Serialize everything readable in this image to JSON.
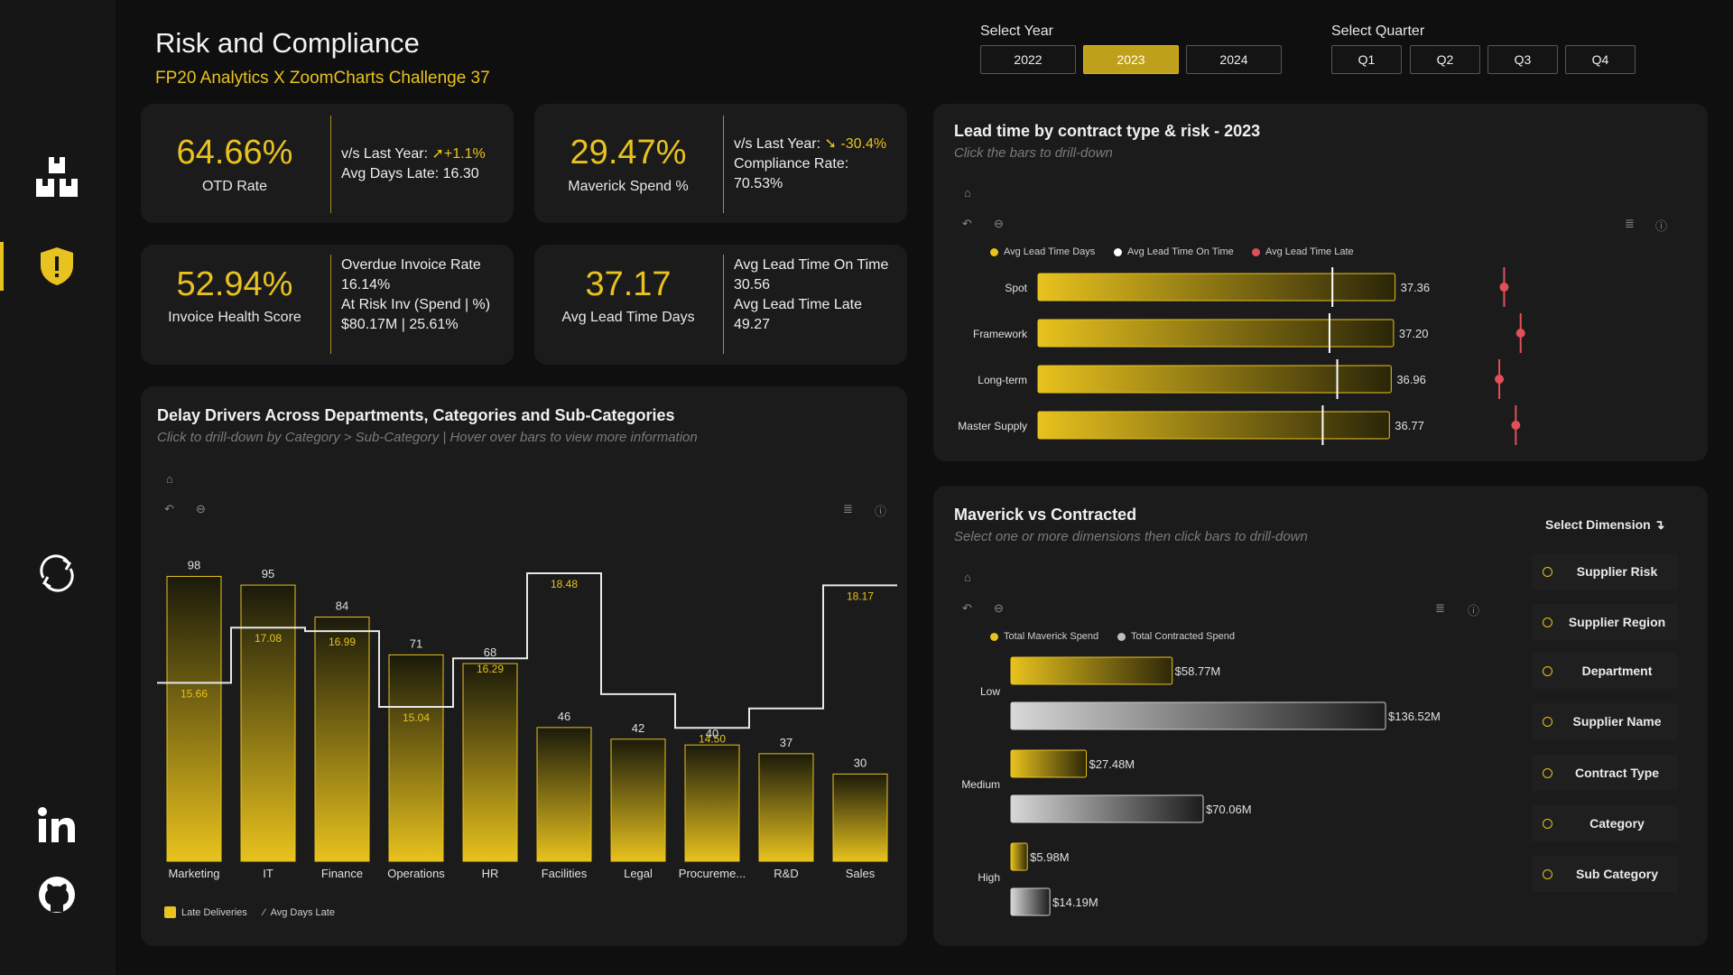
{
  "header": {
    "title": "Risk and Compliance",
    "subtitle": "FP20 Analytics X ZoomCharts Challenge 37"
  },
  "sidebar": {
    "icons": [
      "boxes-icon",
      "shield-alert-icon",
      "refresh-icon",
      "linkedin-icon",
      "github-icon"
    ],
    "active": "shield-alert-icon"
  },
  "year_selector": {
    "label": "Select Year",
    "options": [
      "2022",
      "2023",
      "2024"
    ],
    "selected": "2023"
  },
  "quarter_selector": {
    "label": "Select Quarter",
    "options": [
      "Q1",
      "Q2",
      "Q3",
      "Q4"
    ]
  },
  "kpis": {
    "otd": {
      "value": "64.66%",
      "label": "OTD Rate",
      "line1": "v/s Last Year:",
      "change": "+1.1%",
      "line2": "Avg Days Late: 16.30"
    },
    "maverick": {
      "value": "29.47%",
      "label": "Maverick Spend %",
      "line1": "v/s Last Year:",
      "change": "-30.4%",
      "line2": "Compliance Rate:",
      "line3": "70.53%"
    },
    "invoice": {
      "value": "52.94%",
      "label": "Invoice Health Score",
      "line1": "Overdue Invoice Rate",
      "line2": "16.14%",
      "line3": "At Risk Inv (Spend | %)",
      "line4": "$80.17M | 25.61%"
    },
    "leadtime": {
      "value": "37.17",
      "label": "Avg Lead Time Days",
      "line1": "Avg Lead Time On Time",
      "line2": "30.56",
      "line3": "Avg Lead Time Late",
      "line4": "49.27"
    }
  },
  "colors": {
    "accent": "#e8c21e",
    "late_marker": "#e0505a",
    "panel": "#1b1b1b",
    "background": "#0f0f0f"
  },
  "delay_panel": {
    "title": "Delay Drivers Across Departments, Categories and Sub-Categories",
    "hint": "Click to drill-down by Category > Sub-Category | Hover over bars to view more information",
    "legend_bars": "Late Deliveries",
    "legend_line": "Avg Days Late"
  },
  "lead_panel": {
    "title": "Lead time by contract type & risk - 2023",
    "hint": "Click the bars to drill-down",
    "legend": [
      "Avg Lead Time Days",
      "Avg Lead Time On Time",
      "Avg Lead Time Late"
    ]
  },
  "maverick_panel": {
    "title": "Maverick vs Contracted",
    "hint": "Select one or more dimensions then click bars to drill-down",
    "legend": [
      "Total Maverick Spend",
      "Total Contracted Spend"
    ],
    "dimension_title": "Select Dimension",
    "dimensions": [
      "Supplier Risk",
      "Supplier Region",
      "Department",
      "Supplier Name",
      "Contract Type",
      "Category",
      "Sub Category"
    ]
  },
  "chart_data": [
    {
      "type": "bar",
      "title": "Delay Drivers Across Departments, Categories and Sub-Categories",
      "categories": [
        "Marketing",
        "IT",
        "Finance",
        "Operations",
        "HR",
        "Facilities",
        "Legal",
        "Procureme...",
        "R&D",
        "Sales"
      ],
      "series": [
        {
          "name": "Late Deliveries",
          "type": "bar",
          "values": [
            98,
            95,
            84,
            71,
            68,
            46,
            42,
            40,
            37,
            30
          ]
        },
        {
          "name": "Avg Days Late",
          "type": "step-line",
          "values": [
            15.66,
            17.08,
            16.99,
            15.04,
            16.29,
            18.48,
            null,
            14.5,
            null,
            18.17
          ],
          "labels": [
            "15.66",
            "17.08",
            "16.99",
            "15.04",
            "16.29",
            "18.48",
            "",
            "14.50",
            "",
            "18.17"
          ]
        }
      ]
    },
    {
      "type": "bar",
      "orientation": "horizontal",
      "title": "Lead time by contract type & risk - 2023",
      "categories": [
        "Spot",
        "Framework",
        "Long-term",
        "Master Supply"
      ],
      "series": [
        {
          "name": "Avg Lead Time Days",
          "values": [
            37.36,
            37.2,
            36.96,
            36.77
          ],
          "labels": [
            "37.36",
            "37.20",
            "36.96",
            "36.77"
          ]
        },
        {
          "name": "Avg Lead Time On Time",
          "values": [
            30.9,
            30.6,
            31.4,
            29.9
          ]
        },
        {
          "name": "Avg Lead Time Late",
          "values": [
            48.6,
            50.3,
            48.1,
            49.8
          ]
        }
      ]
    },
    {
      "type": "bar",
      "orientation": "horizontal",
      "title": "Maverick vs Contracted",
      "categories": [
        "Low",
        "Medium",
        "High"
      ],
      "series": [
        {
          "name": "Total Maverick Spend",
          "values": [
            58.77,
            27.48,
            5.98
          ],
          "labels": [
            "$58.77M",
            "$27.48M",
            "$5.98M"
          ]
        },
        {
          "name": "Total Contracted Spend",
          "values": [
            136.52,
            70.06,
            14.19
          ],
          "labels": [
            "$136.52M",
            "$70.06M",
            "$14.19M"
          ]
        }
      ]
    }
  ]
}
